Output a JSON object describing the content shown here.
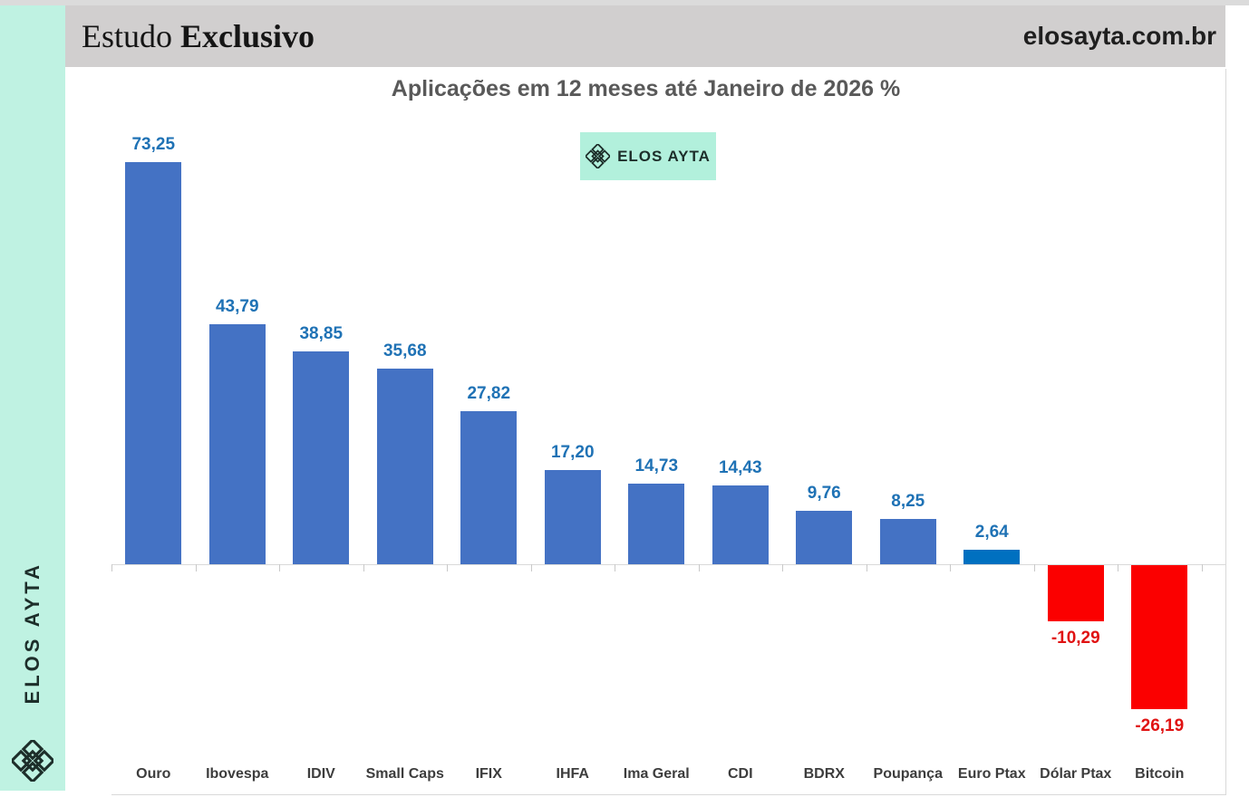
{
  "sidebar": {
    "brand": "ELOS AYTA",
    "bg_color": "#BFF2E2"
  },
  "header": {
    "study_label_regular": "Estudo",
    "study_label_bold": "Exclusivo",
    "website": "elosayta.com.br",
    "bg_color": "#D1CFCF"
  },
  "watermark_badge": {
    "label": "ELOS AYTA",
    "bg_color": "#B2F0DC"
  },
  "chart_data": {
    "type": "bar",
    "title": "Aplicações em 12 meses até Janeiro de 2026 %",
    "categories": [
      "Ouro",
      "Ibovespa",
      "IDIV",
      "Small Caps",
      "IFIX",
      "IHFA",
      "Ima Geral",
      "CDI",
      "BDRX",
      "Poupança",
      "Euro Ptax",
      "Dólar Ptax",
      "Bitcoin"
    ],
    "values": [
      73.25,
      43.79,
      38.85,
      35.68,
      27.82,
      17.2,
      14.73,
      14.43,
      9.76,
      8.25,
      2.64,
      -10.29,
      -26.19
    ],
    "value_labels": [
      "73,25",
      "43,79",
      "38,85",
      "35,68",
      "27,82",
      "17,20",
      "14,73",
      "14,43",
      "9,76",
      "8,25",
      "2,64",
      "-10,29",
      "-26,19"
    ],
    "xlabel": "",
    "ylabel": "",
    "ylim": [
      -30,
      80
    ],
    "grid": false,
    "legend": false,
    "bar_color_default": "#4472C4",
    "bar_color_highlight": "#0070C0",
    "bar_color_negative": "#FB0000",
    "highlight_index": 10,
    "label_color_positive": "#1F72B5",
    "label_color_negative": "#E01212",
    "title_color": "#595959",
    "axis_line_color": "#D9D9D9"
  }
}
